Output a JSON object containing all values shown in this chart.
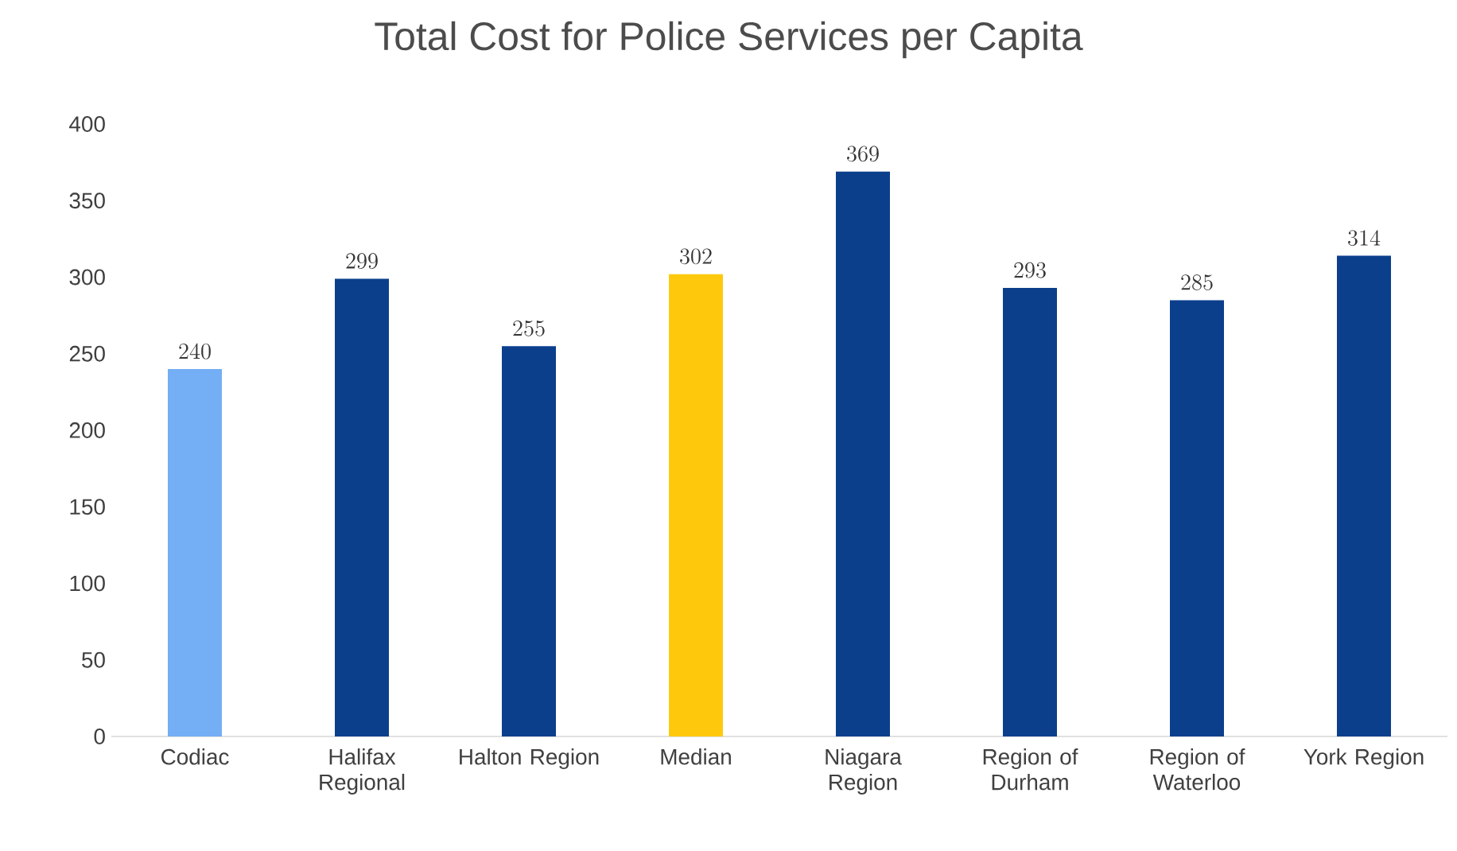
{
  "chart_data": {
    "type": "bar",
    "title": "Total Cost for Police Services per Capita",
    "categories": [
      "Codiac",
      "Halifax Regional",
      "Halton Region",
      "Median",
      "Niagara Region",
      "Region of Durham",
      "Region of Waterloo",
      "York Region"
    ],
    "values": [
      240,
      299,
      255,
      302,
      369,
      293,
      285,
      314
    ],
    "colors": [
      "#74aef5",
      "#0b3f8c",
      "#0b3f8c",
      "#fec90d",
      "#0b3f8c",
      "#0b3f8c",
      "#0b3f8c",
      "#0b3f8c"
    ],
    "ylim": [
      0,
      400
    ],
    "yticks": [
      0,
      50,
      100,
      150,
      200,
      250,
      300,
      350,
      400
    ],
    "data_labels": true
  }
}
